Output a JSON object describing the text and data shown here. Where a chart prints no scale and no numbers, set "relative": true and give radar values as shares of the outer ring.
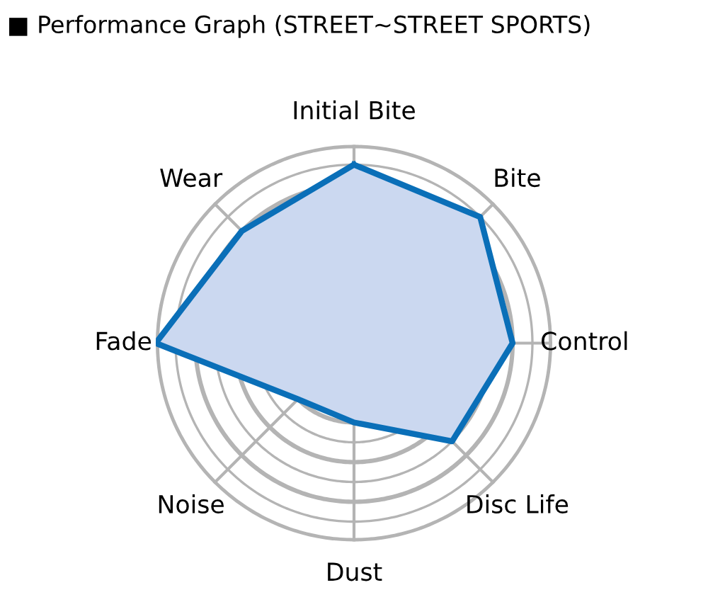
{
  "chart_data": {
    "type": "radar",
    "title": "■ Performance Graph (STREET~STREET SPORTS)",
    "relative": true,
    "grid": true,
    "marker": "none",
    "line_style": "solid",
    "categories": [
      "Initial Bite",
      "Bite",
      "Control",
      "Disc Life",
      "Dust",
      "Noise",
      "Fade",
      "Wear"
    ],
    "series": [
      {
        "color": "#0a6fb8",
        "values": [
          0.9,
          0.9,
          0.8,
          0.7,
          0.4,
          0.4,
          1.0,
          0.8
        ]
      }
    ]
  }
}
